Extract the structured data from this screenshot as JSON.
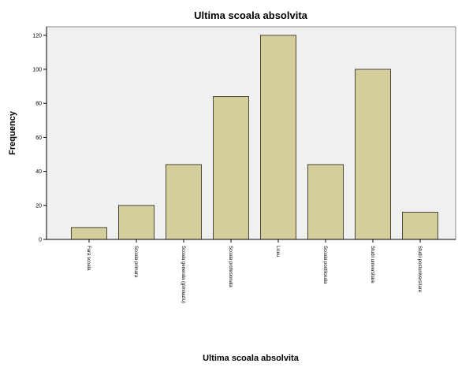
{
  "chart_data": {
    "type": "bar",
    "title": "Ultima scoala absolvita",
    "xlabel": "Ultima scoala absolvita",
    "ylabel": "Frequency",
    "categories": [
      "Fara scoala",
      "Scoala primara",
      "Scoala generala (gimnaziu)",
      "Scoala profesionala",
      "Liceu",
      "Scoala postliceala",
      "Studii universitare",
      "Studii postuniversitare"
    ],
    "values": [
      7,
      20,
      44,
      84,
      120,
      44,
      100,
      16
    ],
    "ylim": [
      0,
      125
    ],
    "yticks": [
      0,
      20,
      40,
      60,
      80,
      100,
      120
    ],
    "grid": false,
    "colors": {
      "bar_fill": "#d3ce9b",
      "bar_stroke": "#4a4a3a",
      "plot_background": "#f0f0f0",
      "axis": "#000000"
    }
  }
}
